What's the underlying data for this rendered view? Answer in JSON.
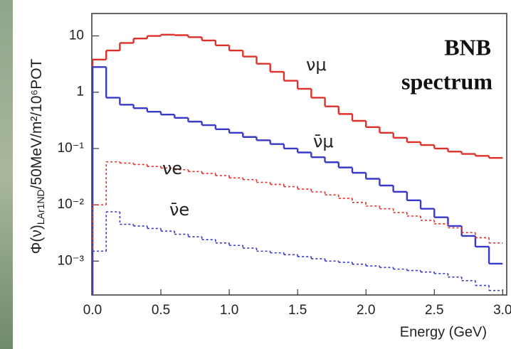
{
  "chart_data": {
    "type": "histogram",
    "annotations": [
      "BNB",
      "spectrum"
    ],
    "y_label": [
      "Φ(ν)",
      "LAr1ND",
      "/50MeV/m²/10⁶POT"
    ],
    "x_label": "Energy (GeV)",
    "bins": [
      0,
      0.1,
      0.2,
      0.3,
      0.4,
      0.5,
      0.6,
      0.7,
      0.8,
      0.9,
      1.0,
      1.1,
      1.2,
      1.3,
      1.4,
      1.5,
      1.6,
      1.7,
      1.8,
      1.9,
      2.0,
      2.1,
      2.2,
      2.3,
      2.4,
      2.5,
      2.6,
      2.7,
      2.8,
      2.9,
      3.0
    ],
    "xlim": [
      0,
      3.04
    ],
    "xticks": [
      {
        "value": 0,
        "label": "0.0"
      },
      {
        "value": 0.5,
        "label": "0.5"
      },
      {
        "value": 1,
        "label": "1.0"
      },
      {
        "value": 1.5,
        "label": "1.5"
      },
      {
        "value": 2,
        "label": "2.0"
      },
      {
        "value": 2.5,
        "label": "2.5"
      },
      {
        "value": 3,
        "label": "3.0"
      }
    ],
    "y_scale": "log",
    "ylim": [
      0.00025,
      25
    ],
    "yticks": [
      {
        "value": 0.001,
        "label": "10⁻³"
      },
      {
        "value": 0.01,
        "label": "10⁻²"
      },
      {
        "value": 0.1,
        "label": "10⁻¹"
      },
      1,
      10
    ],
    "series": [
      {
        "name": "νμ",
        "color": "#e0302a",
        "line_style": "solid",
        "values": [
          3.8,
          5.5,
          7.5,
          9,
          10,
          10.5,
          10.3,
          9.5,
          8.3,
          6.8,
          5.5,
          4.3,
          3.2,
          2.3,
          1.6,
          1.15,
          0.8,
          0.56,
          0.41,
          0.31,
          0.24,
          0.19,
          0.155,
          0.13,
          0.115,
          0.1,
          0.088,
          0.08,
          0.074,
          0.068
        ]
      },
      {
        "name": "ν̄μ",
        "color": "#3a3ac8",
        "line_style": "solid",
        "values": [
          2.8,
          0.8,
          0.6,
          0.52,
          0.45,
          0.4,
          0.35,
          0.3,
          0.26,
          0.22,
          0.19,
          0.16,
          0.14,
          0.12,
          0.1,
          0.085,
          0.07,
          0.057,
          0.046,
          0.037,
          0.029,
          0.022,
          0.017,
          0.012,
          0.0085,
          0.006,
          0.0042,
          0.0028,
          0.0018,
          0.0009
        ]
      },
      {
        "name": "νe",
        "color": "#e0302a",
        "line_style": "dashed",
        "values": [
          0.01,
          0.058,
          0.055,
          0.052,
          0.048,
          0.045,
          0.042,
          0.039,
          0.036,
          0.033,
          0.03,
          0.028,
          0.025,
          0.023,
          0.021,
          0.019,
          0.017,
          0.015,
          0.013,
          0.011,
          0.0095,
          0.0085,
          0.0073,
          0.0063,
          0.0053,
          0.0046,
          0.0039,
          0.0032,
          0.0026,
          0.0021
        ]
      },
      {
        "name": "ν̄e",
        "color": "#3a3ac8",
        "line_style": "dashed",
        "values": [
          0.0015,
          0.0075,
          0.0045,
          0.0042,
          0.0038,
          0.0034,
          0.003,
          0.0027,
          0.0024,
          0.0021,
          0.0019,
          0.0017,
          0.0015,
          0.0014,
          0.0013,
          0.0012,
          0.0011,
          0.001,
          0.00095,
          0.00088,
          0.00082,
          0.00077,
          0.00072,
          0.00068,
          0.00064,
          0.0006,
          0.00052,
          0.00045,
          0.00037,
          0.0003
        ]
      }
    ]
  }
}
